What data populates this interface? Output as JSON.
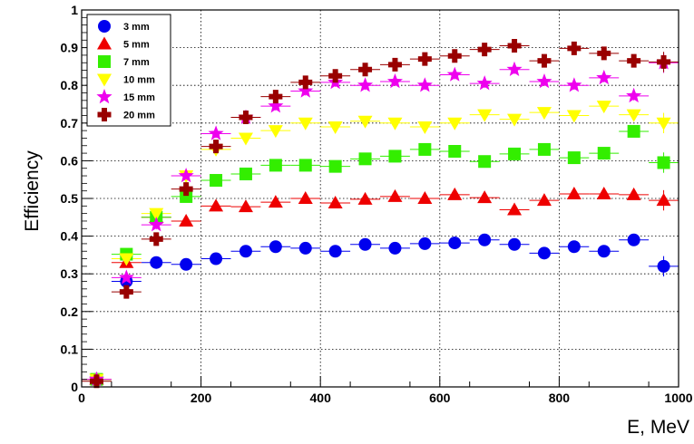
{
  "chart_data": {
    "type": "scatter",
    "title": "",
    "xlabel": "E, MeV",
    "ylabel": "Efficiency",
    "xlim": [
      0,
      1000
    ],
    "ylim": [
      0,
      1
    ],
    "x_ticks": [
      "0",
      "200",
      "400",
      "600",
      "800",
      "1000"
    ],
    "y_ticks": [
      "0",
      "0.1",
      "0.2",
      "0.3",
      "0.4",
      "0.5",
      "0.6",
      "0.7",
      "0.8",
      "0.9",
      "1"
    ],
    "grid": true,
    "legend_position": "top-left",
    "x_error": 25,
    "x": [
      25,
      75,
      125,
      175,
      225,
      275,
      325,
      375,
      425,
      475,
      525,
      575,
      625,
      675,
      725,
      775,
      825,
      875,
      925,
      975
    ],
    "series": [
      {
        "name": "3 mm",
        "marker": "circle",
        "color": "#0000ee",
        "values": [
          0.02,
          0.28,
          0.33,
          0.325,
          0.34,
          0.36,
          0.372,
          0.368,
          0.36,
          0.378,
          0.368,
          0.38,
          0.382,
          0.39,
          0.378,
          0.355,
          0.372,
          0.36,
          0.39,
          0.32
        ]
      },
      {
        "name": "5 mm",
        "marker": "triangle-up",
        "color": "#ee0000",
        "values": [
          0.02,
          0.33,
          0.45,
          0.44,
          0.48,
          0.478,
          0.49,
          0.5,
          0.488,
          0.498,
          0.505,
          0.5,
          0.51,
          0.502,
          0.47,
          0.495,
          0.512,
          0.512,
          0.51,
          0.495
        ]
      },
      {
        "name": "7 mm",
        "marker": "square",
        "color": "#33ee00",
        "values": [
          0.02,
          0.352,
          0.45,
          0.505,
          0.548,
          0.565,
          0.588,
          0.588,
          0.585,
          0.605,
          0.612,
          0.63,
          0.625,
          0.598,
          0.618,
          0.63,
          0.608,
          0.62,
          0.678,
          0.595
        ]
      },
      {
        "name": "10 mm",
        "marker": "triangle-down",
        "color": "#ffff00",
        "values": [
          0.02,
          0.34,
          0.46,
          0.56,
          0.63,
          0.66,
          0.68,
          0.7,
          0.69,
          0.705,
          0.7,
          0.69,
          0.7,
          0.722,
          0.71,
          0.728,
          0.72,
          0.745,
          0.722,
          0.7
        ]
      },
      {
        "name": "15 mm",
        "marker": "star",
        "color": "#ee00ee",
        "values": [
          0.02,
          0.29,
          0.43,
          0.56,
          0.672,
          0.715,
          0.745,
          0.785,
          0.808,
          0.8,
          0.81,
          0.8,
          0.828,
          0.805,
          0.842,
          0.81,
          0.8,
          0.82,
          0.772,
          0.86
        ]
      },
      {
        "name": "20 mm",
        "marker": "cross",
        "color": "#990000",
        "values": [
          0.015,
          0.252,
          0.392,
          0.525,
          0.638,
          0.715,
          0.77,
          0.808,
          0.825,
          0.842,
          0.855,
          0.87,
          0.878,
          0.895,
          0.905,
          0.865,
          0.898,
          0.885,
          0.865,
          0.862
        ]
      }
    ]
  }
}
